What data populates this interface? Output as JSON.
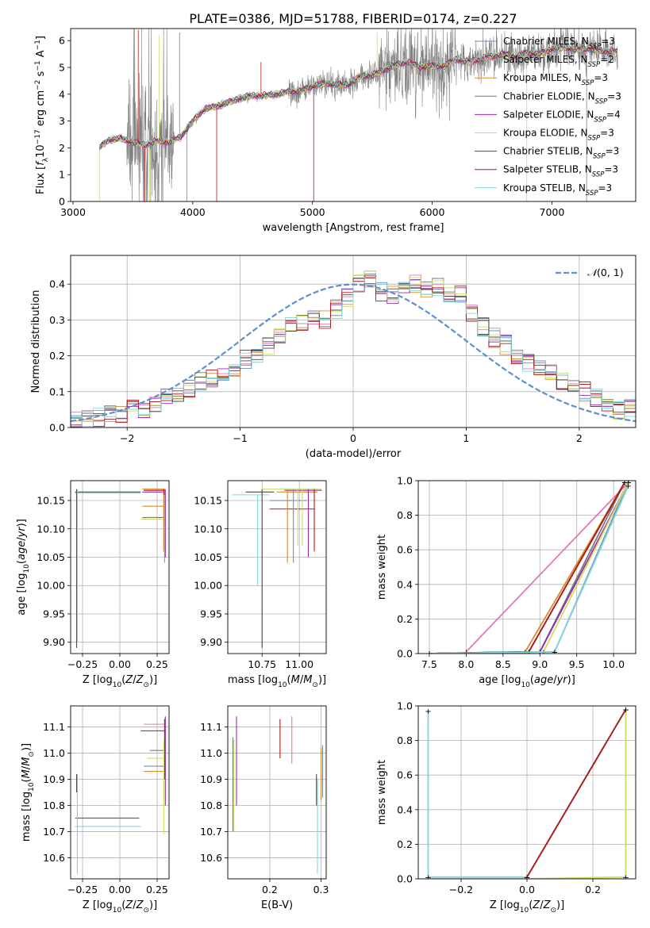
{
  "figure_title": "PLATE=0386, MJD=51788, FIBERID=0174, z=0.227",
  "colors": {
    "Chabrier MILES": "#6c8ebf",
    "Salpeter MILES": "#e07ab4",
    "Kroupa MILES": "#d98a2b",
    "Chabrier ELODIE": "#7a7a7a",
    "Salpeter ELODIE": "#9a2ab0",
    "Kroupa ELODIE": "#c8e060",
    "Chabrier STELIB": "#4a4a4a",
    "Salpeter STELIB": "#b01818",
    "Kroupa STELIB": "#7fd6dc",
    "normal": "#5b8fd6"
  },
  "legend_spectrum": [
    {
      "name": "Chabrier MILES",
      "sub": "SSP",
      "eq": "=3"
    },
    {
      "name": "Salpeter MILES",
      "sub": "SSP",
      "eq": "=2"
    },
    {
      "name": "Kroupa MILES",
      "sub": "SSP",
      "eq": "=3"
    },
    {
      "name": "Chabrier ELODIE",
      "sub": "SSP",
      "eq": "=3"
    },
    {
      "name": "Salpeter ELODIE",
      "sub": "SSP",
      "eq": "=4"
    },
    {
      "name": "Kroupa ELODIE",
      "sub": "SSP",
      "eq": "=3"
    },
    {
      "name": "Chabrier STELIB",
      "sub": "SSP",
      "eq": "=3"
    },
    {
      "name": "Salpeter STELIB",
      "sub": "SSP",
      "eq": "=3"
    },
    {
      "name": "Kroupa STELIB",
      "sub": "SSP",
      "eq": "=3"
    }
  ],
  "chart_data": [
    {
      "id": "spectrum",
      "type": "line",
      "xlabel": "wavelength [Angstrom, rest frame]",
      "ylabel": "Flux [f_λ 10^-17 erg cm^-2 s^-1 A^-1]",
      "xlim": [
        2980,
        7700
      ],
      "ylim": [
        0,
        6.45
      ],
      "xticks": [
        3000,
        4000,
        5000,
        6000,
        7000
      ],
      "yticks": [
        0,
        1,
        2,
        3,
        4,
        5,
        6
      ],
      "data_range": [
        3220,
        7550
      ],
      "continuum_anchors": {
        "x": [
          3220,
          3300,
          3400,
          3500,
          3600,
          3700,
          3800,
          3900,
          4000,
          4100,
          4200,
          4300,
          4400,
          4500,
          4600,
          4700,
          4800,
          4900,
          5000,
          5100,
          5200,
          5300,
          5400,
          5500,
          5600,
          5700,
          5800,
          5900,
          6000,
          6100,
          6200,
          6300,
          6400,
          6500,
          6600,
          6700,
          6800,
          6900,
          7000,
          7100,
          7200,
          7300,
          7400,
          7550
        ],
        "y": [
          2.0,
          2.3,
          2.35,
          2.2,
          2.1,
          2.25,
          2.2,
          2.4,
          3.0,
          3.45,
          3.55,
          3.7,
          3.85,
          3.95,
          3.95,
          4.0,
          4.1,
          4.1,
          4.3,
          4.4,
          4.35,
          4.35,
          4.65,
          4.7,
          4.9,
          5.1,
          5.2,
          5.0,
          5.05,
          5.05,
          5.3,
          5.2,
          5.3,
          5.4,
          5.5,
          5.4,
          5.55,
          5.5,
          5.7,
          5.75,
          5.65,
          5.7,
          5.6,
          5.6
        ]
      },
      "observed_color": "#808080"
    },
    {
      "id": "residuals",
      "type": "step",
      "xlabel": "(data-model)/error",
      "ylabel": "Normed distribution",
      "xlim": [
        -2.5,
        2.5
      ],
      "ylim": [
        0,
        0.48
      ],
      "xticks": [
        -2,
        -1,
        0,
        1,
        2
      ],
      "yticks": [
        0.0,
        0.1,
        0.2,
        0.3,
        0.4
      ],
      "bins": 50,
      "reference": {
        "label": "N(0,1)",
        "style": "dashed"
      },
      "histogram_values": [
        0.02,
        0.02,
        0.03,
        0.04,
        0.04,
        0.05,
        0.05,
        0.06,
        0.08,
        0.1,
        0.11,
        0.13,
        0.14,
        0.15,
        0.17,
        0.19,
        0.2,
        0.23,
        0.26,
        0.28,
        0.29,
        0.3,
        0.3,
        0.33,
        0.36,
        0.4,
        0.41,
        0.38,
        0.37,
        0.39,
        0.4,
        0.38,
        0.39,
        0.37,
        0.37,
        0.32,
        0.28,
        0.25,
        0.23,
        0.2,
        0.18,
        0.16,
        0.15,
        0.13,
        0.12,
        0.1,
        0.08,
        0.06,
        0.05,
        0.05
      ]
    },
    {
      "id": "age-vs-Z",
      "type": "errorbar",
      "xlabel": "Z [log10(Z/Z⊙)]",
      "ylabel": "age [log10(age/yr)]",
      "xlim": [
        -0.33,
        0.33
      ],
      "ylim": [
        9.88,
        10.185
      ],
      "xticks": [
        -0.25,
        0.0,
        0.25
      ],
      "yticks": [
        9.9,
        9.95,
        10.0,
        10.05,
        10.1,
        10.15
      ]
    },
    {
      "id": "age-vs-mass",
      "type": "errorbar",
      "xlabel": "mass [log10(M/M⊙)]",
      "ylabel": "",
      "xlim": [
        10.52,
        11.18
      ],
      "ylim": [
        9.88,
        10.185
      ],
      "xticks": [
        10.75,
        11.0
      ],
      "yticks": [
        9.9,
        9.95,
        10.0,
        10.05,
        10.1,
        10.15
      ]
    },
    {
      "id": "weight-vs-age",
      "type": "line",
      "xlabel": "age [log10(age/yr)]",
      "ylabel": "mass weight",
      "xlim": [
        7.35,
        10.3
      ],
      "ylim": [
        0,
        1.0
      ],
      "xticks": [
        7.5,
        8.0,
        8.5,
        9.0,
        9.5,
        10.0
      ],
      "yticks": [
        0.0,
        0.2,
        0.4,
        0.6,
        0.8,
        1.0
      ],
      "series": [
        {
          "name": "Chabrier MILES",
          "x": [
            7.5,
            9.2,
            10.2
          ],
          "y": [
            0.0,
            0.01,
            0.99
          ]
        },
        {
          "name": "Salpeter MILES",
          "x": [
            8.0,
            10.2
          ],
          "y": [
            0.01,
            0.99
          ]
        },
        {
          "name": "Kroupa MILES",
          "x": [
            7.5,
            8.8,
            10.15
          ],
          "y": [
            0.0,
            0.01,
            0.99
          ]
        },
        {
          "name": "Chabrier ELODIE",
          "x": [
            7.5,
            9.0,
            10.15
          ],
          "y": [
            0.0,
            0.01,
            0.99
          ]
        },
        {
          "name": "Salpeter ELODIE",
          "x": [
            7.5,
            9.0,
            10.2
          ],
          "y": [
            0.0,
            0.01,
            0.99
          ]
        },
        {
          "name": "Kroupa ELODIE",
          "x": [
            7.5,
            9.05,
            10.2
          ],
          "y": [
            0.0,
            0.01,
            0.99
          ]
        },
        {
          "name": "Chabrier STELIB",
          "x": [
            7.5,
            8.85,
            10.15
          ],
          "y": [
            0.0,
            0.01,
            0.99
          ]
        },
        {
          "name": "Salpeter STELIB",
          "x": [
            7.5,
            8.85,
            10.15
          ],
          "y": [
            0.0,
            0.01,
            0.99
          ]
        },
        {
          "name": "Kroupa STELIB",
          "x": [
            7.5,
            9.2,
            10.2
          ],
          "y": [
            0.0,
            0.01,
            0.97
          ]
        }
      ]
    },
    {
      "id": "mass-vs-Z",
      "type": "errorbar",
      "xlabel": "Z [log10(Z/Z⊙)]",
      "ylabel": "mass [log10(M/M⊙)]",
      "xlim": [
        -0.33,
        0.33
      ],
      "ylim": [
        10.52,
        11.18
      ],
      "xticks": [
        -0.25,
        0.0,
        0.25
      ],
      "yticks": [
        10.6,
        10.7,
        10.8,
        10.9,
        11.0,
        11.1
      ]
    },
    {
      "id": "mass-vs-EBV",
      "type": "errorbar",
      "xlabel": "E(B-V)",
      "ylabel": "",
      "xlim": [
        0.118,
        0.31
      ],
      "ylim": [
        10.52,
        11.18
      ],
      "xticks": [
        0.2,
        0.3
      ],
      "yticks": [
        10.6,
        10.7,
        10.8,
        10.9,
        11.0,
        11.1
      ]
    },
    {
      "id": "weight-vs-Z",
      "type": "line",
      "xlabel": "Z [log10(Z/Z⊙)]",
      "ylabel": "mass weight",
      "xlim": [
        -0.33,
        0.33
      ],
      "ylim": [
        0,
        1.0
      ],
      "xticks": [
        -0.2,
        0.0,
        0.2
      ],
      "yticks": [
        0.0,
        0.2,
        0.4,
        0.6,
        0.8,
        1.0
      ],
      "series": [
        {
          "name": "Kroupa ELODIE",
          "x": [
            -0.3,
            0.0,
            0.3,
            0.3
          ],
          "y": [
            0.0,
            0.0,
            0.01,
            0.98
          ]
        },
        {
          "name": "Kroupa STELIB",
          "x": [
            -0.3,
            -0.3,
            0.0
          ],
          "y": [
            0.97,
            0.01,
            0.01
          ]
        },
        {
          "name": "Chabrier STELIB",
          "x": [
            0.0,
            0.3
          ],
          "y": [
            0.01,
            0.98
          ]
        },
        {
          "name": "Salpeter STELIB",
          "x": [
            0.0,
            0.3
          ],
          "y": [
            0.01,
            0.98
          ]
        }
      ]
    }
  ]
}
